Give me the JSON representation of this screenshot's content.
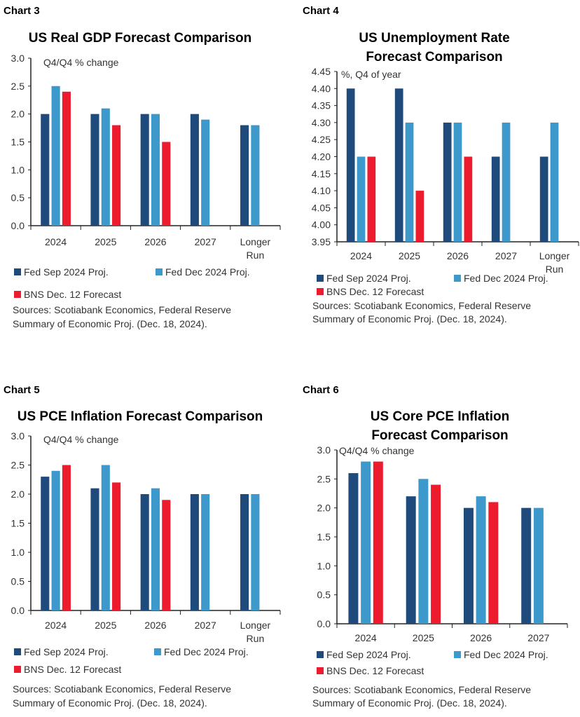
{
  "colors": {
    "fed_sep": "#1f4a7c",
    "fed_dec": "#3d98cb",
    "bns": "#ec1c2e",
    "axis": "#222222"
  },
  "chart_data": [
    {
      "label": "Chart 3",
      "type": "bar",
      "title": [
        "US Real GDP Forecast Comparison"
      ],
      "ylabel": "Q4/Q4 % change",
      "ylim": [
        0,
        3
      ],
      "ytick_step": 0.5,
      "yticks": [
        "0.0",
        "0.5",
        "1.0",
        "1.5",
        "2.0",
        "2.5",
        "3.0"
      ],
      "categories": [
        [
          "2024"
        ],
        [
          "2025"
        ],
        [
          "2026"
        ],
        [
          "2027"
        ],
        [
          "Longer",
          "Run"
        ]
      ],
      "series": [
        {
          "name": "Fed Sep 2024 Proj.",
          "values": [
            2.0,
            2.0,
            2.0,
            2.0,
            1.8
          ]
        },
        {
          "name": "Fed Dec 2024 Proj.",
          "values": [
            2.5,
            2.1,
            2.0,
            1.9,
            1.8
          ]
        },
        {
          "name": "BNS Dec. 12 Forecast",
          "values": [
            2.4,
            1.8,
            1.5,
            null,
            null
          ]
        }
      ],
      "grid": false,
      "legend": "bottom",
      "source": [
        "Sources: Scotiabank Economics, Federal Reserve",
        "Summary of Economic Proj. (Dec. 18, 2024)."
      ]
    },
    {
      "label": "Chart 4",
      "type": "bar",
      "title": [
        "US Unemployment Rate",
        "Forecast Comparison"
      ],
      "ylabel": "%, Q4 of year",
      "ylim": [
        3.95,
        4.45
      ],
      "ytick_step": 0.05,
      "yticks": [
        "3.95",
        "4.00",
        "4.05",
        "4.10",
        "4.15",
        "4.20",
        "4.25",
        "4.30",
        "4.35",
        "4.40",
        "4.45"
      ],
      "categories": [
        [
          "2024"
        ],
        [
          "2025"
        ],
        [
          "2026"
        ],
        [
          "2027"
        ],
        [
          "Longer",
          "Run"
        ]
      ],
      "series": [
        {
          "name": "Fed Sep 2024 Proj.",
          "values": [
            4.4,
            4.4,
            4.3,
            4.2,
            4.2
          ]
        },
        {
          "name": "Fed Dec 2024 Proj.",
          "values": [
            4.2,
            4.3,
            4.3,
            4.3,
            4.3
          ]
        },
        {
          "name": "BNS Dec. 12 Forecast",
          "values": [
            4.2,
            4.1,
            4.2,
            null,
            null
          ]
        }
      ],
      "grid": false,
      "legend": "bottom",
      "source": [
        "Sources: Scotiabank Economics, Federal Reserve",
        "Summary of Economic Proj. (Dec. 18, 2024)."
      ]
    },
    {
      "label": "Chart 5",
      "type": "bar",
      "title": [
        "US PCE Inflation Forecast Comparison"
      ],
      "ylabel": "Q4/Q4 % change",
      "ylim": [
        0,
        3
      ],
      "ytick_step": 0.5,
      "yticks": [
        "0.0",
        "0.5",
        "1.0",
        "1.5",
        "2.0",
        "2.5",
        "3.0"
      ],
      "categories": [
        [
          "2024"
        ],
        [
          "2025"
        ],
        [
          "2026"
        ],
        [
          "2027"
        ],
        [
          "Longer",
          "Run"
        ]
      ],
      "series": [
        {
          "name": "Fed Sep 2024 Proj.",
          "values": [
            2.3,
            2.1,
            2.0,
            2.0,
            2.0
          ]
        },
        {
          "name": "Fed Dec 2024 Proj.",
          "values": [
            2.4,
            2.5,
            2.1,
            2.0,
            2.0
          ]
        },
        {
          "name": "BNS Dec. 12 Forecast",
          "values": [
            2.5,
            2.2,
            1.9,
            null,
            null
          ]
        }
      ],
      "grid": false,
      "legend": "bottom",
      "source": [
        "Sources: Scotiabank Economics, Federal Reserve",
        "Summary of Economic Proj. (Dec. 18, 2024)."
      ]
    },
    {
      "label": "Chart 6",
      "type": "bar",
      "title": [
        "US Core PCE Inflation",
        "Forecast Comparison"
      ],
      "ylabel": "Q4/Q4 % change",
      "ylim": [
        0,
        3
      ],
      "ytick_step": 0.5,
      "yticks": [
        "0.0",
        "0.5",
        "1.0",
        "1.5",
        "2.0",
        "2.5",
        "3.0"
      ],
      "categories": [
        [
          "2024"
        ],
        [
          "2025"
        ],
        [
          "2026"
        ],
        [
          "2027"
        ]
      ],
      "series": [
        {
          "name": "Fed Sep 2024 Proj.",
          "values": [
            2.6,
            2.2,
            2.0,
            2.0
          ]
        },
        {
          "name": "Fed Dec 2024 Proj.",
          "values": [
            2.8,
            2.5,
            2.2,
            2.0
          ]
        },
        {
          "name": "BNS Dec. 12 Forecast",
          "values": [
            2.8,
            2.4,
            2.1,
            null
          ]
        }
      ],
      "grid": false,
      "legend": "bottom",
      "source": [
        "Sources: Scotiabank Economics, Federal Reserve",
        "Summary of Economic Proj. (Dec. 18, 2024)."
      ]
    }
  ]
}
